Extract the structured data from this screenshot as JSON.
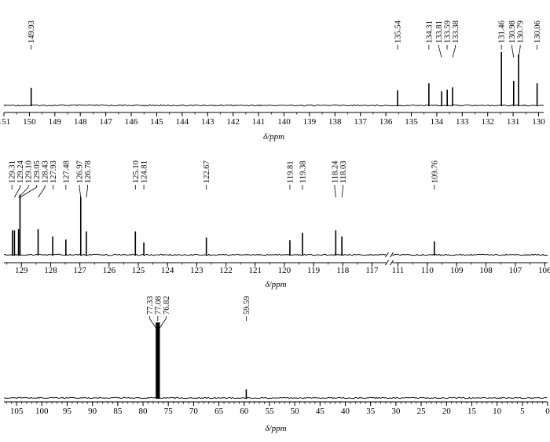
{
  "chart_data": [
    {
      "type": "line",
      "panel": "top",
      "xlabel": "δ/ppm",
      "x_axis_reversed": true,
      "xlim": [
        151,
        129.8
      ],
      "ticks": [
        151,
        150,
        149,
        148,
        147,
        146,
        145,
        144,
        143,
        142,
        141,
        140,
        139,
        138,
        137,
        136,
        135,
        134,
        133,
        132,
        131,
        130
      ],
      "series": [
        {
          "peaks": [
            {
              "ppm": 149.93,
              "height": 0.3,
              "label": "149.93"
            },
            {
              "ppm": 135.54,
              "height": 0.26,
              "label": "135.54"
            },
            {
              "ppm": 134.31,
              "height": 0.38,
              "label": "134.31"
            },
            {
              "ppm": 133.81,
              "height": 0.24,
              "label": "133.81"
            },
            {
              "ppm": 133.59,
              "height": 0.27,
              "label": "133.59"
            },
            {
              "ppm": 133.38,
              "height": 0.31,
              "label": "133.38"
            },
            {
              "ppm": 131.46,
              "height": 0.92,
              "label": "131.46"
            },
            {
              "ppm": 130.98,
              "height": 0.42,
              "label": "130.98"
            },
            {
              "ppm": 130.79,
              "height": 0.87,
              "label": "130.79"
            },
            {
              "ppm": 130.06,
              "height": 0.38,
              "label": "130.06"
            }
          ]
        }
      ]
    },
    {
      "type": "line",
      "panel": "middle",
      "xlabel": "δ/ppm",
      "x_axis_reversed": true,
      "axis_break": [
        116.5,
        111.2
      ],
      "segments": [
        {
          "xlim": [
            129.6,
            116.5
          ],
          "ticks": [
            129,
            128,
            127,
            126,
            125,
            124,
            123,
            122,
            121,
            120,
            119,
            118,
            117
          ]
        },
        {
          "xlim": [
            111.2,
            105.9
          ],
          "ticks": [
            111,
            110,
            109,
            108,
            107,
            106
          ]
        }
      ],
      "series": [
        {
          "peaks": [
            {
              "ppm": 129.31,
              "height": 0.4,
              "label": "129.31"
            },
            {
              "ppm": 129.24,
              "height": 0.4,
              "label": "129.24"
            },
            {
              "ppm": 129.1,
              "height": 0.42,
              "label": "129.10"
            },
            {
              "ppm": 129.05,
              "height": 0.98,
              "label": "129.05"
            },
            {
              "ppm": 128.43,
              "height": 0.42,
              "label": "128.43"
            },
            {
              "ppm": 127.93,
              "height": 0.3,
              "label": "127.93"
            },
            {
              "ppm": 127.48,
              "height": 0.25,
              "label": "127.48"
            },
            {
              "ppm": 126.97,
              "height": 0.94,
              "label": "126.97"
            },
            {
              "ppm": 126.78,
              "height": 0.38,
              "label": "126.78"
            },
            {
              "ppm": 125.1,
              "height": 0.38,
              "label": "125.10"
            },
            {
              "ppm": 124.81,
              "height": 0.2,
              "label": "124.81"
            },
            {
              "ppm": 122.67,
              "height": 0.28,
              "label": "122.67"
            },
            {
              "ppm": 119.81,
              "height": 0.24,
              "label": "119.81"
            },
            {
              "ppm": 119.38,
              "height": 0.36,
              "label": "119.38"
            },
            {
              "ppm": 118.24,
              "height": 0.4,
              "label": "118.24"
            },
            {
              "ppm": 118.03,
              "height": 0.3,
              "label": "118.03"
            },
            {
              "ppm": 109.76,
              "height": 0.22,
              "label": "109.76"
            }
          ]
        }
      ]
    },
    {
      "type": "line",
      "panel": "bottom",
      "xlabel": "δ/ppm",
      "x_axis_reversed": true,
      "xlim": [
        107.5,
        0
      ],
      "ticks": [
        105,
        100,
        95,
        90,
        85,
        80,
        75,
        70,
        65,
        60,
        55,
        50,
        45,
        40,
        35,
        30,
        25,
        20,
        15,
        10,
        5,
        0
      ],
      "series": [
        {
          "peaks": [
            {
              "ppm": 77.33,
              "height": 0.98,
              "label": "77.33"
            },
            {
              "ppm": 77.08,
              "height": 0.98,
              "label": "77.08"
            },
            {
              "ppm": 76.82,
              "height": 0.98,
              "label": "76.82"
            },
            {
              "ppm": 59.59,
              "height": 0.11,
              "label": "59.59"
            }
          ]
        }
      ]
    }
  ]
}
